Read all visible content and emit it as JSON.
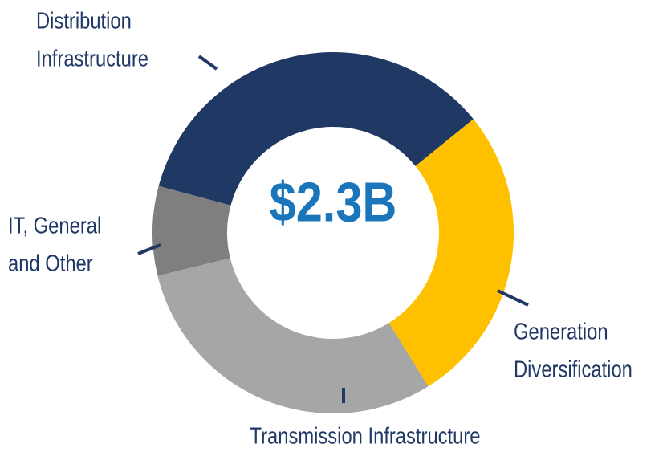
{
  "chart_data": {
    "type": "donut",
    "center_label": "$2.3B",
    "categories": [
      [
        "Distribution",
        "Infrastructure"
      ],
      [
        "Generation",
        "Diversification"
      ],
      [
        "Transmission Infrastructure"
      ],
      [
        "IT, General",
        "and Other"
      ]
    ],
    "values": [
      35,
      27,
      30,
      8
    ],
    "colors": [
      "#203864",
      "#ffc000",
      "#a6a6a6",
      "#7f7f7f"
    ]
  }
}
